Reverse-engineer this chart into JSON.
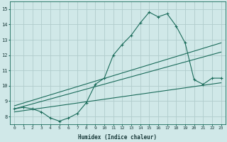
{
  "xlabel": "Humidex (Indice chaleur)",
  "bg_color": "#d0e8e8",
  "grid_color": "#b0cccc",
  "line_color": "#1a6b5a",
  "xlim": [
    -0.5,
    23.5
  ],
  "ylim": [
    7.5,
    15.5
  ],
  "xticks": [
    0,
    1,
    2,
    3,
    4,
    5,
    6,
    7,
    8,
    9,
    10,
    11,
    12,
    13,
    14,
    15,
    16,
    17,
    18,
    19,
    20,
    21,
    22,
    23
  ],
  "yticks": [
    8,
    9,
    10,
    11,
    12,
    13,
    14,
    15
  ],
  "main_x": [
    0,
    1,
    2,
    3,
    4,
    5,
    6,
    7,
    8,
    9,
    10,
    11,
    12,
    13,
    14,
    15,
    16,
    17,
    18,
    19,
    20,
    21,
    22,
    23
  ],
  "main_y": [
    8.5,
    8.6,
    8.5,
    8.3,
    7.9,
    7.7,
    7.9,
    8.2,
    8.9,
    10.1,
    10.5,
    12.0,
    12.7,
    13.3,
    14.1,
    14.8,
    14.5,
    14.7,
    13.9,
    12.8,
    10.4,
    10.1,
    10.5,
    10.5
  ],
  "line1_x": [
    0,
    23
  ],
  "line1_y": [
    8.7,
    12.8
  ],
  "line2_x": [
    0,
    23
  ],
  "line2_y": [
    8.5,
    12.2
  ],
  "line3_x": [
    0,
    23
  ],
  "line3_y": [
    8.3,
    10.2
  ]
}
